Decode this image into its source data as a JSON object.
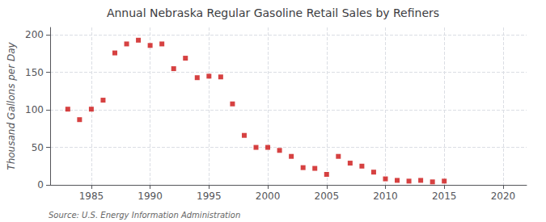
{
  "chart_data": {
    "type": "scatter",
    "title": "Annual Nebraska Regular Gasoline Retail Sales by Refiners",
    "ylabel": "Thousand Gallons per Day",
    "annotations": [
      "Source: U.S. Energy Information Administration"
    ],
    "x": [
      1983,
      1984,
      1985,
      1986,
      1987,
      1988,
      1989,
      1990,
      1991,
      1992,
      1993,
      1994,
      1995,
      1996,
      1997,
      1998,
      1999,
      2000,
      2001,
      2002,
      2003,
      2004,
      2005,
      2006,
      2007,
      2008,
      2009,
      2010,
      2011,
      2012,
      2013,
      2014,
      2015
    ],
    "values": [
      101,
      87,
      101,
      113,
      176,
      188,
      193,
      186,
      188,
      155,
      169,
      143,
      145,
      144,
      108,
      66,
      50,
      50,
      46,
      38,
      23,
      22,
      14,
      38,
      29,
      25,
      17,
      8,
      6,
      5,
      6,
      4,
      5
    ],
    "color": "#cc1111",
    "marker": "square",
    "xlim": [
      1981.5,
      2022
    ],
    "ylim": [
      0,
      210
    ],
    "xticks": [
      1985,
      1990,
      1995,
      2000,
      2005,
      2010,
      2015,
      2020
    ],
    "yticks": [
      0,
      50,
      100,
      150,
      200
    ],
    "grid": true
  }
}
